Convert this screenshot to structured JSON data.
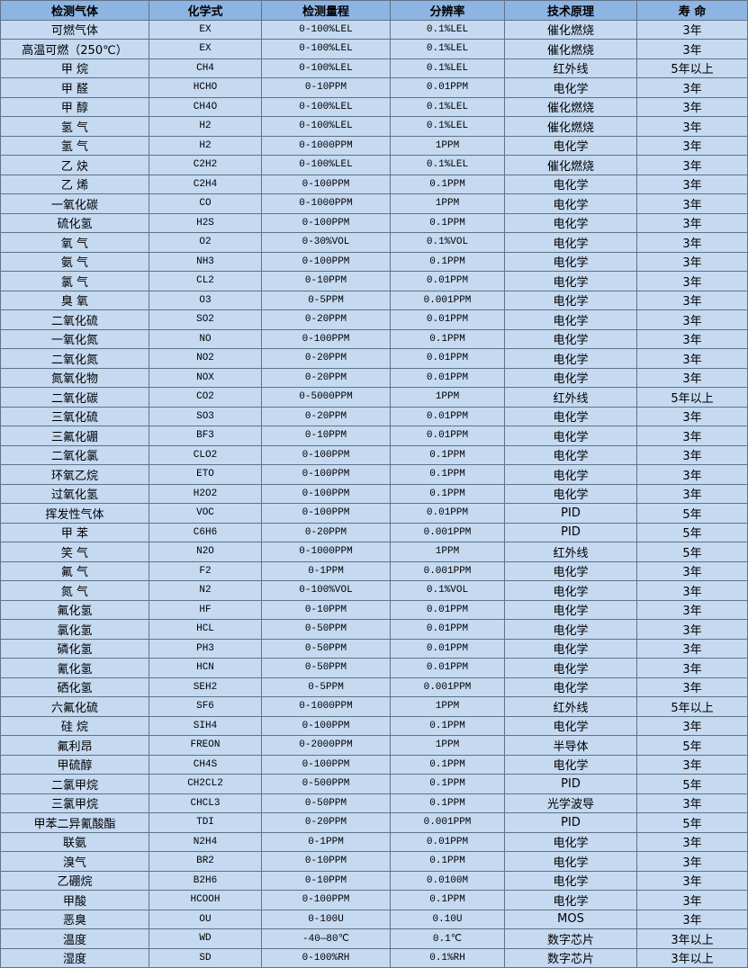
{
  "colors": {
    "header_bg": "#8db4e2",
    "row_bg": "#c5d9f1",
    "border": "#5f7386"
  },
  "table": {
    "headers": [
      "检测气体",
      "化学式",
      "检测量程",
      "分辨率",
      "技术原理",
      "寿 命"
    ],
    "rows": [
      [
        "可燃气体",
        "EX",
        "0-100%LEL",
        "0.1%LEL",
        "催化燃烧",
        "3年"
      ],
      [
        "高温可燃（250℃）",
        "EX",
        "0-100%LEL",
        "0.1%LEL",
        "催化燃烧",
        "3年"
      ],
      [
        "甲 烷",
        "CH4",
        "0-100%LEL",
        "0.1%LEL",
        "红外线",
        "5年以上"
      ],
      [
        "甲 醛",
        "HCHO",
        "0-10PPM",
        "0.01PPM",
        "电化学",
        "3年"
      ],
      [
        "甲 醇",
        "CH4O",
        "0-100%LEL",
        "0.1%LEL",
        "催化燃烧",
        "3年"
      ],
      [
        "氢 气",
        "H2",
        "0-100%LEL",
        "0.1%LEL",
        "催化燃烧",
        "3年"
      ],
      [
        "氢 气",
        "H2",
        "0-1000PPM",
        "1PPM",
        "电化学",
        "3年"
      ],
      [
        "乙 炔",
        "C2H2",
        "0-100%LEL",
        "0.1%LEL",
        "催化燃烧",
        "3年"
      ],
      [
        "乙 烯",
        "C2H4",
        "0-100PPM",
        "0.1PPM",
        "电化学",
        "3年"
      ],
      [
        "一氧化碳",
        "CO",
        "0-1000PPM",
        "1PPM",
        "电化学",
        "3年"
      ],
      [
        "硫化氢",
        "H2S",
        "0-100PPM",
        "0.1PPM",
        "电化学",
        "3年"
      ],
      [
        "氧 气",
        "O2",
        "0-30%VOL",
        "0.1%VOL",
        "电化学",
        "3年"
      ],
      [
        "氨 气",
        "NH3",
        "0-100PPM",
        "0.1PPM",
        "电化学",
        "3年"
      ],
      [
        "氯 气",
        "CL2",
        "0-10PPM",
        "0.01PPM",
        "电化学",
        "3年"
      ],
      [
        "臭 氧",
        "O3",
        "0-5PPM",
        "0.001PPM",
        "电化学",
        "3年"
      ],
      [
        "二氧化硫",
        "SO2",
        "0-20PPM",
        "0.01PPM",
        "电化学",
        "3年"
      ],
      [
        "一氧化氮",
        "NO",
        "0-100PPM",
        "0.1PPM",
        "电化学",
        "3年"
      ],
      [
        "二氧化氮",
        "NO2",
        "0-20PPM",
        "0.01PPM",
        "电化学",
        "3年"
      ],
      [
        "氮氧化物",
        "NOX",
        "0-20PPM",
        "0.01PPM",
        "电化学",
        "3年"
      ],
      [
        "二氧化碳",
        "CO2",
        "0-5000PPM",
        "1PPM",
        "红外线",
        "5年以上"
      ],
      [
        "三氧化硫",
        "SO3",
        "0-20PPM",
        "0.01PPM",
        "电化学",
        "3年"
      ],
      [
        "三氟化硼",
        "BF3",
        "0-10PPM",
        "0.01PPM",
        "电化学",
        "3年"
      ],
      [
        "二氧化氯",
        "CLO2",
        "0-100PPM",
        "0.1PPM",
        "电化学",
        "3年"
      ],
      [
        "环氧乙烷",
        "ETO",
        "0-100PPM",
        "0.1PPM",
        "电化学",
        "3年"
      ],
      [
        "过氧化氢",
        "H2O2",
        "0-100PPM",
        "0.1PPM",
        "电化学",
        "3年"
      ],
      [
        "挥发性气体",
        "VOC",
        "0-100PPM",
        "0.01PPM",
        "PID",
        "5年"
      ],
      [
        "甲 苯",
        "C6H6",
        "0-20PPM",
        "0.001PPM",
        "PID",
        "5年"
      ],
      [
        "笑 气",
        "N2O",
        "0-1000PPM",
        "1PPM",
        "红外线",
        "5年"
      ],
      [
        "氟 气",
        "F2",
        "0-1PPM",
        "0.001PPM",
        "电化学",
        "3年"
      ],
      [
        "氮 气",
        "N2",
        "0-100%VOL",
        "0.1%VOL",
        "电化学",
        "3年"
      ],
      [
        "氟化氢",
        "HF",
        "0-10PPM",
        "0.01PPM",
        "电化学",
        "3年"
      ],
      [
        "氯化氢",
        "HCL",
        "0-50PPM",
        "0.01PPM",
        "电化学",
        "3年"
      ],
      [
        "磷化氢",
        "PH3",
        "0-50PPM",
        "0.01PPM",
        "电化学",
        "3年"
      ],
      [
        "氰化氢",
        "HCN",
        "0-50PPM",
        "0.01PPM",
        "电化学",
        "3年"
      ],
      [
        "硒化氢",
        "SEH2",
        "0-5PPM",
        "0.001PPM",
        "电化学",
        "3年"
      ],
      [
        "六氟化硫",
        "SF6",
        "0-1000PPM",
        "1PPM",
        "红外线",
        "5年以上"
      ],
      [
        "硅 烷",
        "SIH4",
        "0-100PPM",
        "0.1PPM",
        "电化学",
        "3年"
      ],
      [
        "氟利昂",
        "FREON",
        "0-2000PPM",
        "1PPM",
        "半导体",
        "5年"
      ],
      [
        "甲硫醇",
        "CH4S",
        "0-100PPM",
        "0.1PPM",
        "电化学",
        "3年"
      ],
      [
        "二氯甲烷",
        "CH2CL2",
        "0-500PPM",
        "0.1PPM",
        "PID",
        "5年"
      ],
      [
        "三氯甲烷",
        "CHCL3",
        "0-50PPM",
        "0.1PPM",
        "光学波导",
        "3年"
      ],
      [
        "甲苯二异氰酸酯",
        "TDI",
        "0-20PPM",
        "0.001PPM",
        "PID",
        "5年"
      ],
      [
        "联氨",
        "N2H4",
        "0-1PPM",
        "0.01PPM",
        "电化学",
        "3年"
      ],
      [
        "溴气",
        "BR2",
        "0-10PPM",
        "0.1PPM",
        "电化学",
        "3年"
      ],
      [
        "乙硼烷",
        "B2H6",
        "0-10PPM",
        "0.0100M",
        "电化学",
        "3年"
      ],
      [
        "甲酸",
        "HCOOH",
        "0-100PPM",
        "0.1PPM",
        "电化学",
        "3年"
      ],
      [
        "恶臭",
        "OU",
        "0-100U",
        "0.10U",
        "MOS",
        "3年"
      ],
      [
        "温度",
        "WD",
        "-40—80℃",
        "0.1℃",
        "数字芯片",
        "3年以上"
      ],
      [
        "湿度",
        "SD",
        "0-100%RH",
        "0.1%RH",
        "数字芯片",
        "3年以上"
      ]
    ]
  }
}
